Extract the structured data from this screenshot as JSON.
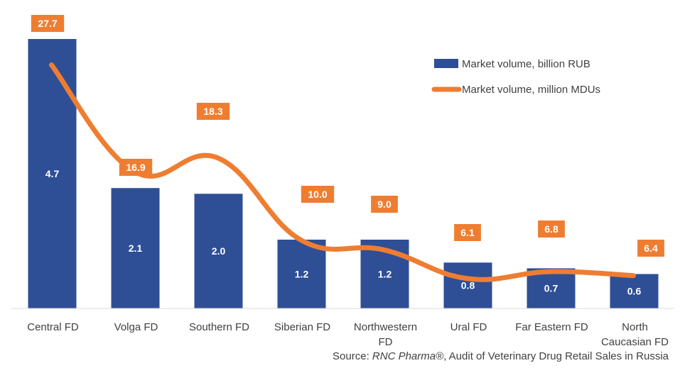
{
  "colors": {
    "bar": "#2e4f96",
    "line": "#ef7d31",
    "axis": "#d9d9d9",
    "text": "#404040"
  },
  "chart_data": {
    "type": "bar",
    "title": "",
    "xlabel": "",
    "ylabel": "",
    "categories": [
      [
        "Central FD"
      ],
      [
        "Volga FD"
      ],
      [
        "Southern FD"
      ],
      [
        "Siberian FD"
      ],
      [
        "Northwestern",
        "FD"
      ],
      [
        "Ural FD"
      ],
      [
        "Far Eastern FD"
      ],
      [
        "North",
        "Caucasian FD"
      ]
    ],
    "series": [
      {
        "name": "Market volume, billion RUB",
        "type": "bar",
        "values": [
          4.7,
          2.1,
          2.0,
          1.2,
          1.2,
          0.8,
          0.7,
          0.6
        ],
        "labels": [
          "4.7",
          "2.1",
          "2.0",
          "1.2",
          "1.2",
          "0.8",
          "0.7",
          "0.6"
        ]
      },
      {
        "name": "Market volume, million MDUs",
        "type": "line",
        "values": [
          27.7,
          16.9,
          18.3,
          10.0,
          9.0,
          6.1,
          6.8,
          6.4
        ],
        "labels": [
          "27.7",
          "16.9",
          "18.3",
          "10.0",
          "9.0",
          "6.1",
          "6.8",
          "6.4"
        ]
      }
    ],
    "legend_position": "top-right",
    "grid": false
  },
  "source": {
    "prefix": "Source: ",
    "brand": "RNC Pharma®",
    "suffix": ", Audit of Veterinary Drug Retail Sales in Russia"
  }
}
